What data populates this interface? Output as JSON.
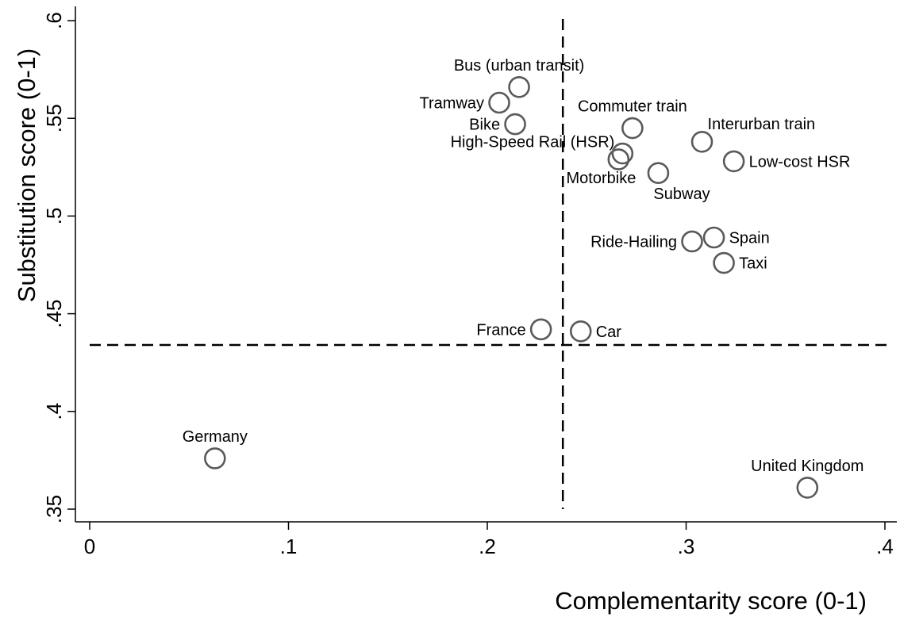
{
  "chart_data": {
    "type": "scatter",
    "xlabel": "Complementarity score (0-1)",
    "ylabel": "Substitution score (0-1)",
    "xlim": [
      0,
      0.4
    ],
    "ylim": [
      0.35,
      0.6
    ],
    "x_ticks": [
      {
        "value": 0,
        "label": "0"
      },
      {
        "value": 0.1,
        "label": ".1"
      },
      {
        "value": 0.2,
        "label": ".2"
      },
      {
        "value": 0.3,
        "label": ".3"
      },
      {
        "value": 0.4,
        "label": ".4"
      }
    ],
    "y_ticks": [
      {
        "value": 0.35,
        "label": ".35"
      },
      {
        "value": 0.4,
        "label": ".4"
      },
      {
        "value": 0.45,
        "label": ".45"
      },
      {
        "value": 0.5,
        "label": ".5"
      },
      {
        "value": 0.55,
        "label": ".55"
      },
      {
        "value": 0.6,
        "label": ".6"
      }
    ],
    "reference_lines": {
      "vertical_x": 0.238,
      "horizontal_y": 0.434,
      "style": "dashed"
    },
    "grid": false,
    "marker": "hollow-circle",
    "points": [
      {
        "label": "Bus (urban transit)",
        "x": 0.216,
        "y": 0.566,
        "label_pos": "above"
      },
      {
        "label": "Tramway",
        "x": 0.206,
        "y": 0.558,
        "label_pos": "left"
      },
      {
        "label": "Bike",
        "x": 0.214,
        "y": 0.547,
        "label_pos": "left"
      },
      {
        "label": "Commuter train",
        "x": 0.273,
        "y": 0.545,
        "label_pos": "above"
      },
      {
        "label": "Interurban train",
        "x": 0.308,
        "y": 0.538,
        "label_pos": "above-right"
      },
      {
        "label": "High-Speed Rail (HSR)",
        "x": 0.268,
        "y": 0.532,
        "label_pos": "above-left"
      },
      {
        "label": "Motorbike",
        "x": 0.266,
        "y": 0.529,
        "label_pos": "below-left"
      },
      {
        "label": "Low-cost HSR",
        "x": 0.324,
        "y": 0.528,
        "label_pos": "right"
      },
      {
        "label": "Subway",
        "x": 0.286,
        "y": 0.522,
        "label_pos": "below-right"
      },
      {
        "label": "Spain",
        "x": 0.314,
        "y": 0.489,
        "label_pos": "right"
      },
      {
        "label": "Ride-Hailing",
        "x": 0.303,
        "y": 0.487,
        "label_pos": "left"
      },
      {
        "label": "Taxi",
        "x": 0.319,
        "y": 0.476,
        "label_pos": "right"
      },
      {
        "label": "France",
        "x": 0.227,
        "y": 0.442,
        "label_pos": "left"
      },
      {
        "label": "Car",
        "x": 0.247,
        "y": 0.441,
        "label_pos": "right"
      },
      {
        "label": "Germany",
        "x": 0.063,
        "y": 0.376,
        "label_pos": "above"
      },
      {
        "label": "United Kingdom",
        "x": 0.361,
        "y": 0.361,
        "label_pos": "above"
      }
    ]
  }
}
